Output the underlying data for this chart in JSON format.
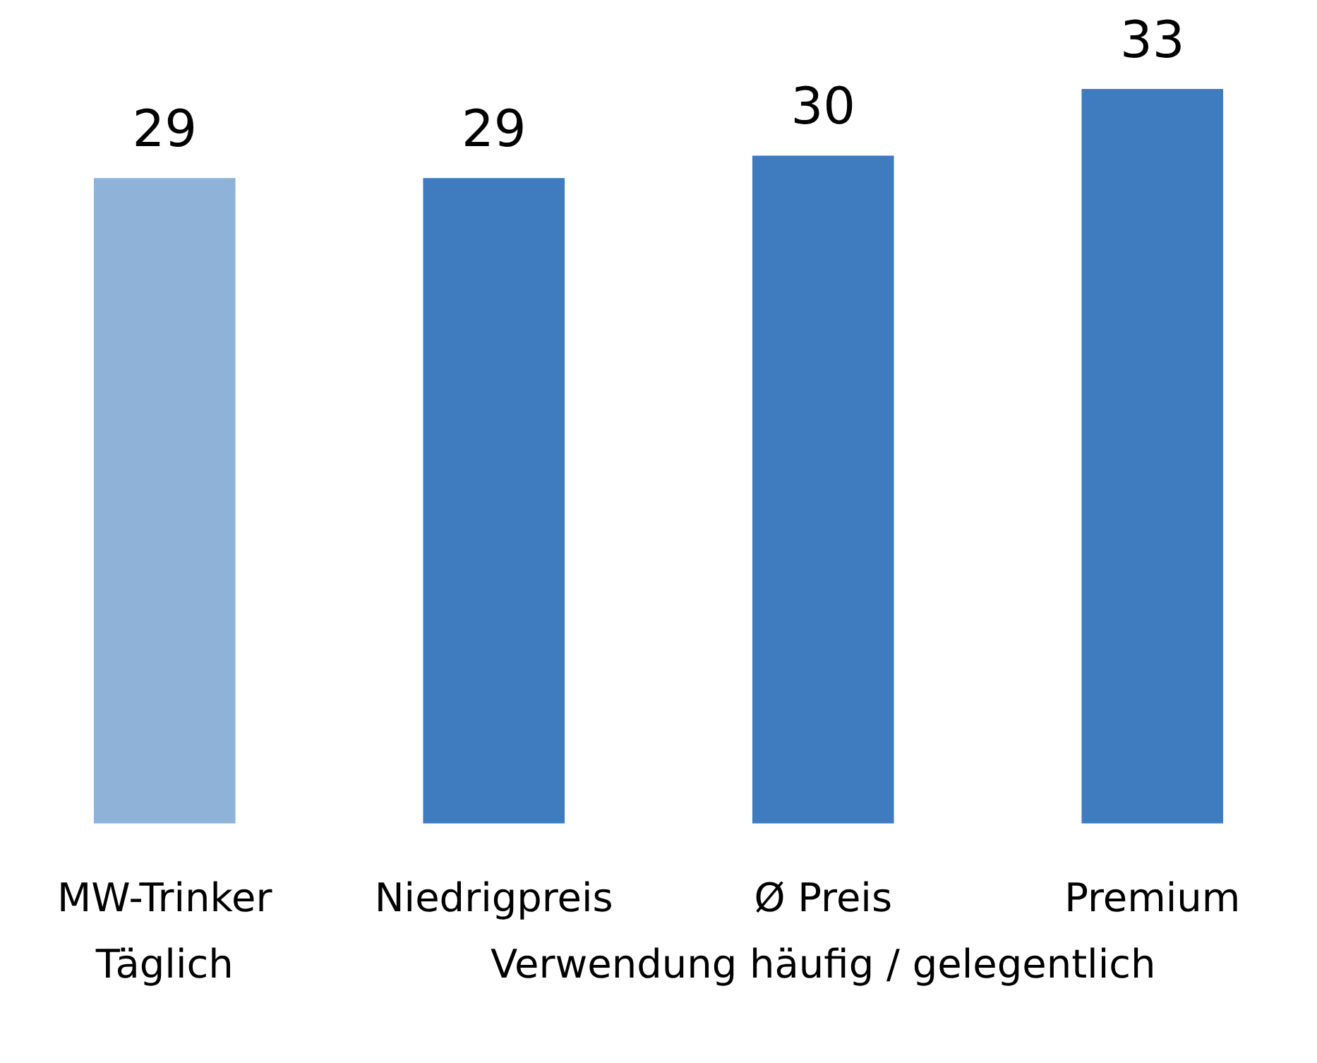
{
  "chart_data": {
    "type": "bar",
    "categories": [
      "MW-Trinker",
      "Niedrigpreis",
      "Ø Preis",
      "Premium"
    ],
    "values": [
      29,
      29,
      30,
      33
    ],
    "colors": [
      "#8fb2d8",
      "#3f7cbf",
      "#3f7cbf",
      "#3f7cbf"
    ],
    "ylim": [
      0,
      33
    ],
    "data_labels": true,
    "grid": false,
    "legend": false,
    "annotations": [
      "Täglich",
      "Verwendung häufig / gelegentlich"
    ]
  }
}
